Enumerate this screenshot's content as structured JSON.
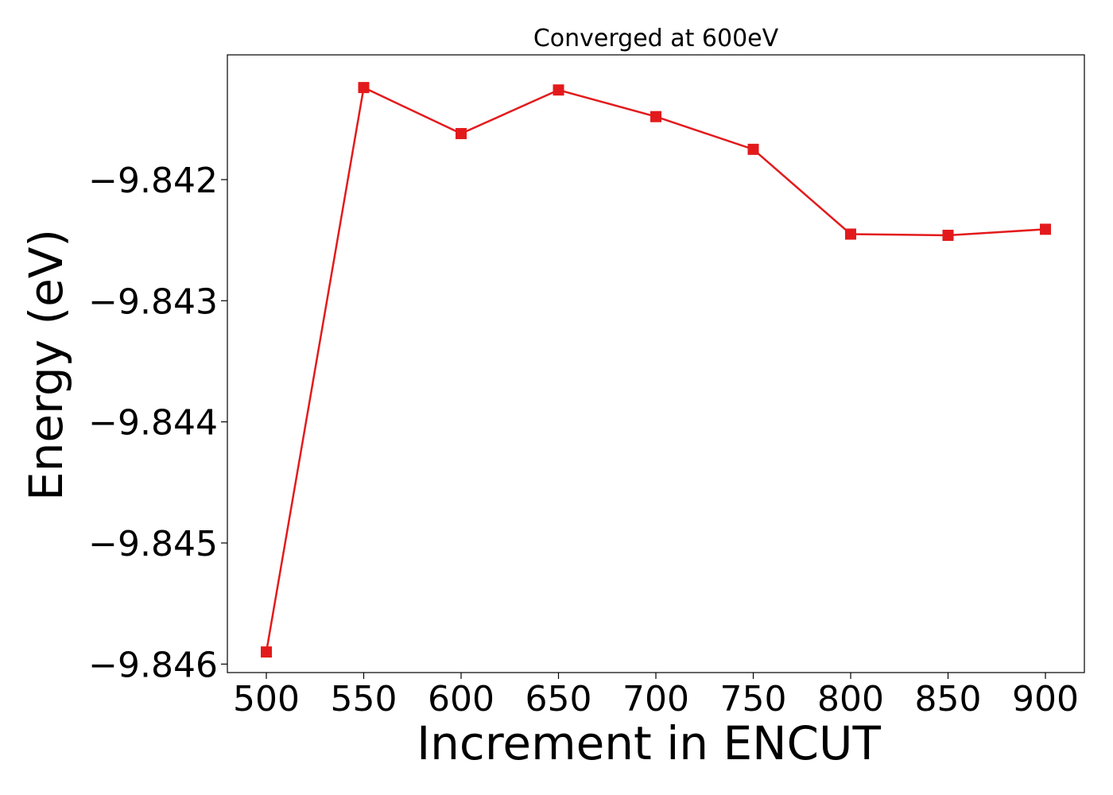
{
  "chart_data": {
    "type": "line",
    "title": "Converged at 600eV",
    "xlabel": "Increment in ENCUT",
    "ylabel": "Energy (eV)",
    "x": [
      500,
      550,
      600,
      650,
      700,
      750,
      800,
      850,
      900
    ],
    "x_ticks": [
      "500",
      "550",
      "600",
      "650",
      "700",
      "750",
      "800",
      "850",
      "900"
    ],
    "y_ticks": [
      -9.842,
      -9.843,
      -9.844,
      -9.845,
      -9.846
    ],
    "y_tick_labels": [
      "−9.842",
      "−9.843",
      "−9.844",
      "−9.845",
      "−9.846"
    ],
    "xlim": [
      480,
      920
    ],
    "ylim": [
      -9.84607,
      -9.84097
    ],
    "grid": false,
    "series": [
      {
        "color": "#e31a1c",
        "marker": "square",
        "values": [
          -9.8459,
          -9.84124,
          -9.84162,
          -9.84126,
          -9.84148,
          -9.84175,
          -9.84245,
          -9.84246,
          -9.84241
        ]
      }
    ]
  }
}
